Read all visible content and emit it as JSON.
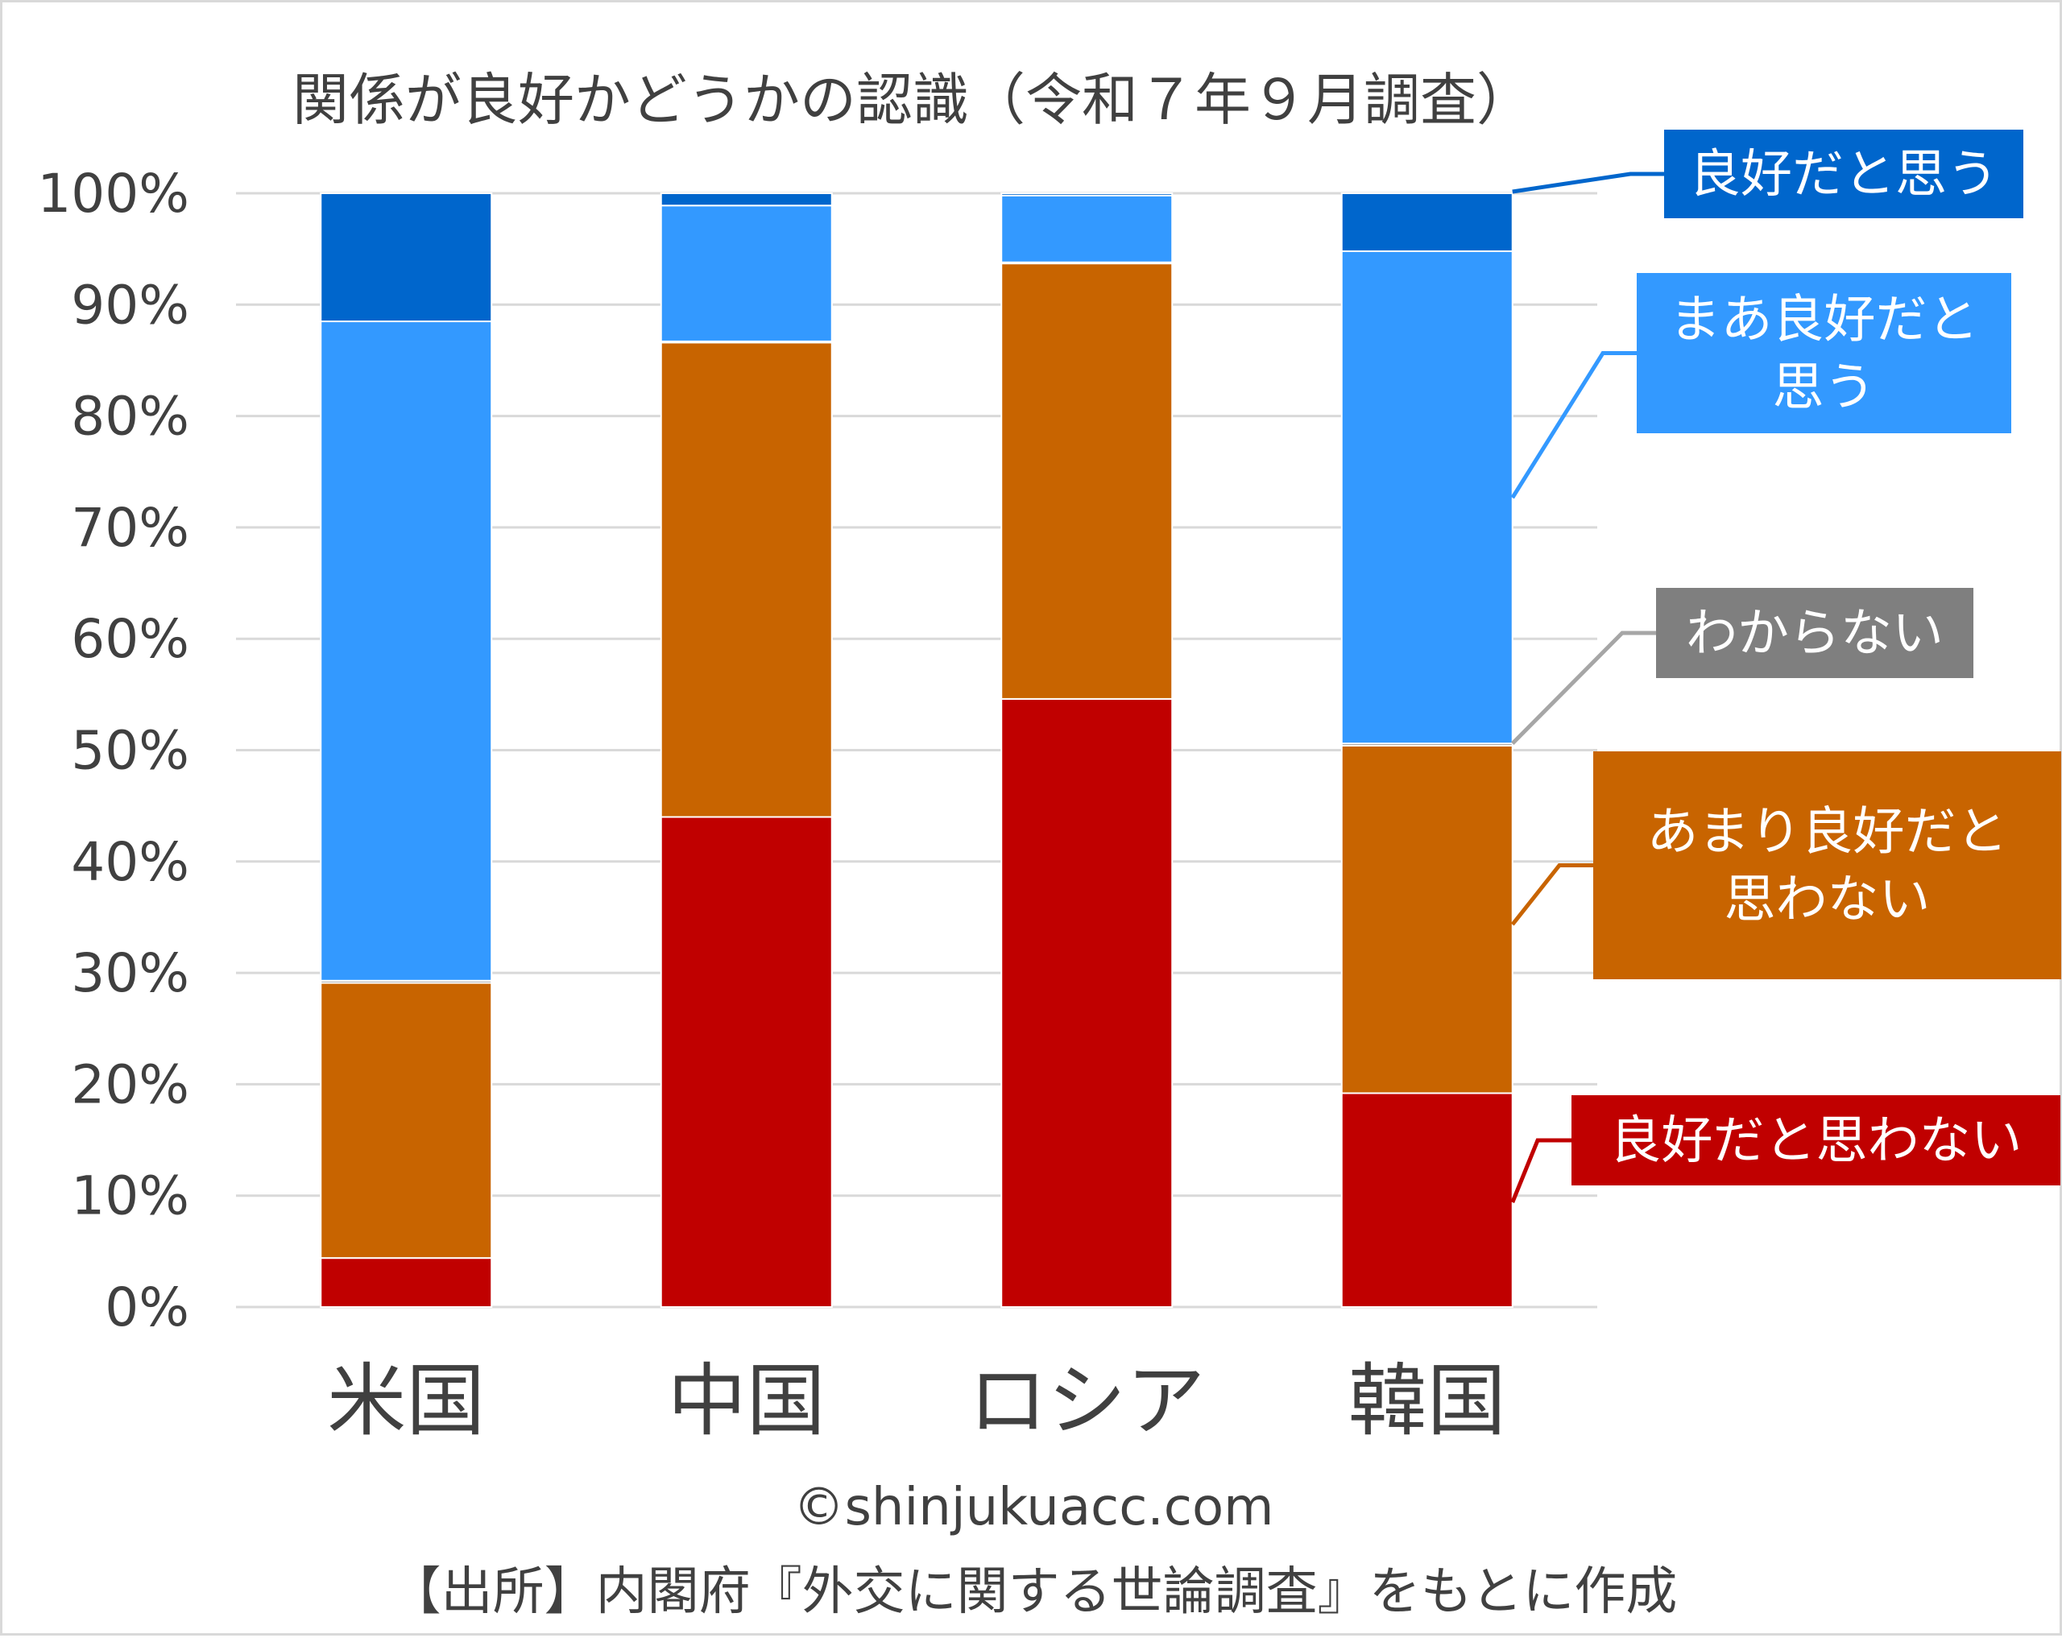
{
  "chart_data": {
    "type": "bar",
    "stacked": true,
    "percent_scale": true,
    "title": "関係が良好かどうかの認識（令和７年９月調査）",
    "categories": [
      "米国",
      "中国",
      "ロシア",
      "韓国"
    ],
    "ylim": [
      0,
      100
    ],
    "yticks": [
      "0%",
      "10%",
      "20%",
      "30%",
      "40%",
      "50%",
      "60%",
      "70%",
      "80%",
      "90%",
      "100%"
    ],
    "grid": true,
    "legend_placement": "right",
    "series": [
      {
        "name": "良好だと思わない",
        "color": "#c00000",
        "values": [
          4.4,
          44.0,
          54.6,
          19.2
        ]
      },
      {
        "name": "あまり良好だと思わない",
        "color": "#c86400",
        "values": [
          24.7,
          42.6,
          39.1,
          31.2
        ]
      },
      {
        "name": "わからない",
        "color": "#7f7f7f",
        "values": [
          0.2,
          0.1,
          0.1,
          0.2
        ]
      },
      {
        "name": "まあ良好だと思う",
        "color": "#3399ff",
        "values": [
          59.2,
          12.2,
          6.0,
          44.2
        ]
      },
      {
        "name": "良好だと思う",
        "color": "#0066cc",
        "values": [
          11.5,
          1.1,
          0.2,
          5.2
        ]
      }
    ],
    "legend": [
      {
        "series": 4,
        "lines": [
          "良好だと思う"
        ]
      },
      {
        "series": 3,
        "lines": [
          "まあ良好だと",
          "思う"
        ]
      },
      {
        "series": 2,
        "lines": [
          "わからない"
        ]
      },
      {
        "series": 1,
        "lines": [
          "あまり良好だと",
          "思わない"
        ]
      },
      {
        "series": 0,
        "lines": [
          "良好だと思わない"
        ]
      }
    ]
  },
  "footer": {
    "copyright": "©shinjukuacc.com",
    "source": "【出所】内閣府『外交に関する世論調査』をもとに作成"
  }
}
